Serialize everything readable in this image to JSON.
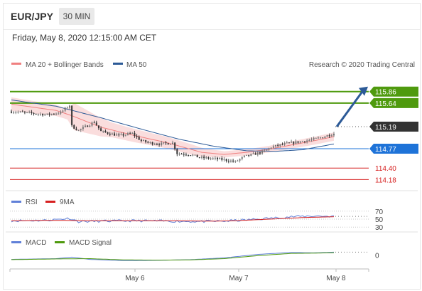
{
  "header": {
    "pair": "EUR/JPY",
    "timeframe": "30 MIN"
  },
  "datetime": "Friday, May 8, 2020 12:15:00 AM CET",
  "copyright": "Research © 2020 Trading Central",
  "legend": {
    "bollinger": "MA 20 + Bollinger Bands",
    "ma50": "MA 50",
    "rsi": "RSI",
    "rsi_ma": "9MA",
    "macd": "MACD",
    "macd_signal": "MACD Signal"
  },
  "colors": {
    "up": "#777777",
    "down": "#333333",
    "bollinger": "#f08080",
    "ma50": "#2c5a97",
    "resistance": "#4f9a0e",
    "support": "#d62020",
    "pivot": "#1e73d8",
    "current": "#333333"
  },
  "chart_data": [
    {
      "type": "candlestick",
      "x_labels": [
        "May 6",
        "May 7",
        "May 8"
      ],
      "current_price": "115.19",
      "levels": [
        {
          "value": "115.86",
          "kind": "resistance"
        },
        {
          "value": "115.64",
          "kind": "resistance"
        },
        {
          "value": "115.19",
          "kind": "current"
        },
        {
          "value": "114.77",
          "kind": "pivot"
        },
        {
          "value": "114.40",
          "kind": "support"
        },
        {
          "value": "114.18",
          "kind": "support"
        }
      ],
      "ylim": [
        114.05,
        116.25
      ],
      "close_path": [
        [
          0,
          115.48
        ],
        [
          8,
          115.45
        ],
        [
          16,
          115.42
        ],
        [
          22,
          115.46
        ],
        [
          26,
          115.6
        ],
        [
          27,
          115.2
        ],
        [
          30,
          115.12
        ],
        [
          37,
          115.28
        ],
        [
          40,
          115.1
        ],
        [
          48,
          115.02
        ],
        [
          54,
          115.06
        ],
        [
          58,
          114.92
        ],
        [
          62,
          114.88
        ],
        [
          66,
          114.86
        ],
        [
          72,
          114.88
        ],
        [
          74,
          114.68
        ],
        [
          80,
          114.66
        ],
        [
          84,
          114.6
        ],
        [
          90,
          114.58
        ],
        [
          95,
          114.56
        ],
        [
          100,
          114.52
        ],
        [
          104,
          114.62
        ],
        [
          108,
          114.66
        ],
        [
          113,
          114.72
        ],
        [
          116,
          114.8
        ],
        [
          122,
          114.86
        ],
        [
          128,
          114.9
        ],
        [
          134,
          114.94
        ],
        [
          138,
          114.98
        ],
        [
          144,
          115.06
        ]
      ],
      "ma20_path": [
        [
          0,
          115.62
        ],
        [
          20,
          115.5
        ],
        [
          27,
          115.4
        ],
        [
          40,
          115.18
        ],
        [
          55,
          115.02
        ],
        [
          70,
          114.88
        ],
        [
          85,
          114.7
        ],
        [
          95,
          114.66
        ],
        [
          105,
          114.7
        ],
        [
          115,
          114.76
        ],
        [
          125,
          114.84
        ],
        [
          135,
          114.92
        ],
        [
          144,
          115.0
        ]
      ],
      "ma50_path": [
        [
          0,
          115.7
        ],
        [
          20,
          115.58
        ],
        [
          40,
          115.36
        ],
        [
          60,
          115.12
        ],
        [
          75,
          114.95
        ],
        [
          90,
          114.82
        ],
        [
          105,
          114.73
        ],
        [
          118,
          114.72
        ],
        [
          130,
          114.75
        ],
        [
          144,
          114.86
        ]
      ],
      "band_width_path": [
        [
          0,
          0.13
        ],
        [
          25,
          0.1
        ],
        [
          28,
          0.26
        ],
        [
          45,
          0.14
        ],
        [
          60,
          0.12
        ],
        [
          80,
          0.1
        ],
        [
          95,
          0.06
        ],
        [
          110,
          0.06
        ],
        [
          125,
          0.07
        ],
        [
          144,
          0.08
        ]
      ],
      "projection": {
        "from": 115.19,
        "to": 115.9
      }
    },
    {
      "type": "line",
      "name": "RSI",
      "y_ticks": [
        "70",
        "50",
        "30"
      ],
      "ylim": [
        25,
        75
      ],
      "rsi_path": [
        [
          0,
          46
        ],
        [
          15,
          47
        ],
        [
          26,
          52
        ],
        [
          30,
          44
        ],
        [
          40,
          45
        ],
        [
          55,
          46
        ],
        [
          70,
          45
        ],
        [
          85,
          44
        ],
        [
          95,
          45
        ],
        [
          105,
          48
        ],
        [
          115,
          52
        ],
        [
          125,
          56
        ],
        [
          135,
          58
        ],
        [
          144,
          57
        ]
      ],
      "rsi_ma_path": [
        [
          0,
          46
        ],
        [
          20,
          47
        ],
        [
          35,
          46
        ],
        [
          55,
          46
        ],
        [
          70,
          46
        ],
        [
          90,
          45
        ],
        [
          100,
          46
        ],
        [
          115,
          50
        ],
        [
          130,
          54
        ],
        [
          144,
          56
        ]
      ]
    },
    {
      "type": "line",
      "name": "MACD",
      "y_ticks": [
        "0"
      ],
      "ylim": [
        -0.45,
        0.35
      ],
      "macd_path": [
        [
          0,
          -0.18
        ],
        [
          20,
          -0.15
        ],
        [
          27,
          -0.09
        ],
        [
          35,
          -0.18
        ],
        [
          50,
          -0.23
        ],
        [
          65,
          -0.22
        ],
        [
          80,
          -0.19
        ],
        [
          95,
          -0.12
        ],
        [
          110,
          0.02
        ],
        [
          125,
          0.1
        ],
        [
          135,
          0.08
        ],
        [
          144,
          0.11
        ]
      ],
      "signal_path": [
        [
          0,
          -0.19
        ],
        [
          22,
          -0.16
        ],
        [
          35,
          -0.15
        ],
        [
          50,
          -0.2
        ],
        [
          65,
          -0.21
        ],
        [
          80,
          -0.2
        ],
        [
          95,
          -0.15
        ],
        [
          110,
          -0.03
        ],
        [
          125,
          0.06
        ],
        [
          135,
          0.07
        ],
        [
          144,
          0.09
        ]
      ]
    }
  ]
}
